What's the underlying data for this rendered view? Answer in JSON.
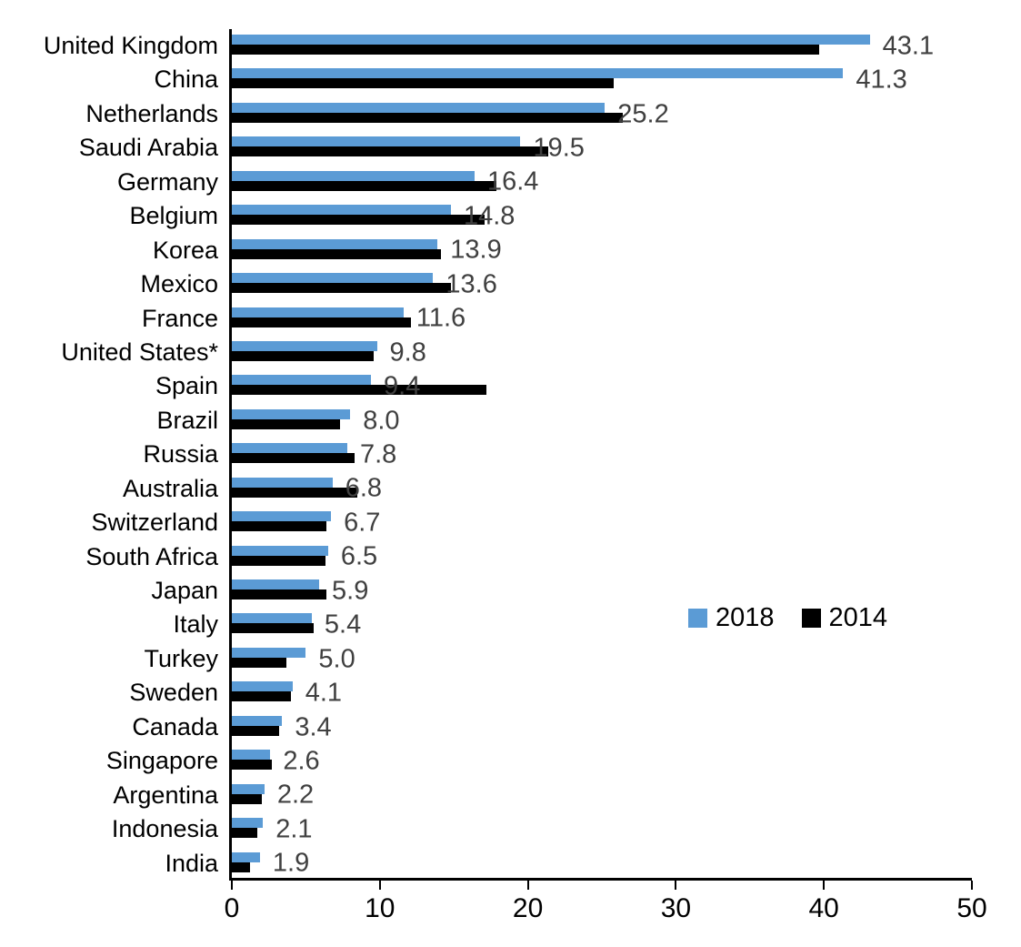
{
  "chart_data": {
    "type": "bar",
    "orientation": "horizontal",
    "title": "",
    "xlabel": "",
    "ylabel": "",
    "xlim": [
      0,
      50
    ],
    "x_ticks": [
      0,
      10,
      20,
      30,
      40,
      50
    ],
    "grid": false,
    "legend": {
      "position": "middle-right",
      "entries": [
        "2018",
        "2014"
      ]
    },
    "value_label_color": "#404040",
    "axis_color": "#000000",
    "categories": [
      "United Kingdom",
      "China",
      "Netherlands",
      "Saudi Arabia",
      "Germany",
      "Belgium",
      "Korea",
      "Mexico",
      "France",
      "United States*",
      "Spain",
      "Brazil",
      "Russia",
      "Australia",
      "Switzerland",
      "South Africa",
      "Japan",
      "Italy",
      "Turkey",
      "Sweden",
      "Canada",
      "Singapore",
      "Argentina",
      "Indonesia",
      "India"
    ],
    "series": [
      {
        "name": "2018",
        "color": "#5B9BD5",
        "data_labels_shown": true,
        "values": [
          43.1,
          41.3,
          25.2,
          19.5,
          16.4,
          14.8,
          13.9,
          13.6,
          11.6,
          9.8,
          9.4,
          8.0,
          7.8,
          6.8,
          6.7,
          6.5,
          5.9,
          5.4,
          5.0,
          4.1,
          3.4,
          2.6,
          2.2,
          2.1,
          1.9
        ],
        "data_labels": [
          "43.1",
          "41.3",
          "25.2",
          "19.5",
          "16.4",
          "14.8",
          "13.9",
          "13.6",
          "11.6",
          "9.8",
          "9.4",
          "8.0",
          "7.8",
          "6.8",
          "6.7",
          "6.5",
          "5.9",
          "5.4",
          "5.0",
          "4.1",
          "3.4",
          "2.6",
          "2.2",
          "2.1",
          "1.9"
        ]
      },
      {
        "name": "2014",
        "color": "#000000",
        "data_labels_shown": false,
        "values": [
          39.7,
          25.8,
          26.4,
          21.4,
          17.9,
          17.1,
          14.1,
          14.8,
          12.1,
          9.6,
          17.2,
          7.3,
          8.3,
          8.5,
          6.4,
          6.3,
          6.4,
          5.5,
          3.7,
          4.0,
          3.2,
          2.7,
          2.0,
          1.7,
          1.2
        ]
      }
    ]
  }
}
